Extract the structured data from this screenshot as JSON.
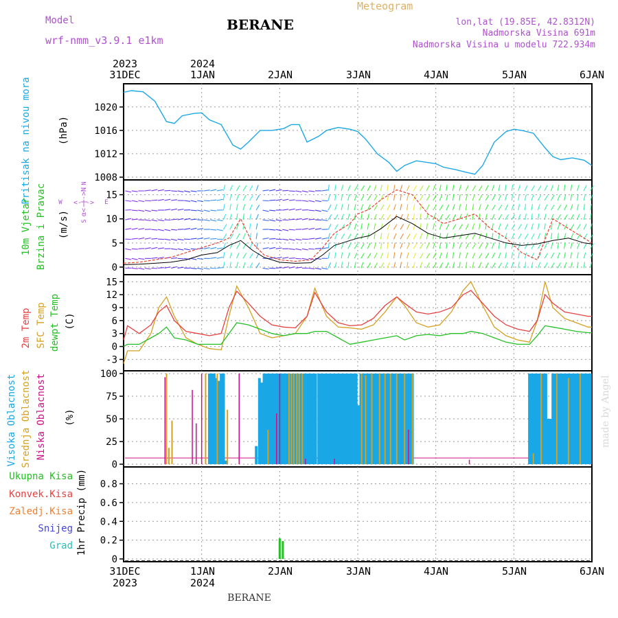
{
  "header": {
    "model_label": "Model",
    "model_name": "wrf-nmm_v3.9.1 e1km",
    "station": "BERANE",
    "product": "Meteogram",
    "coords": "lon,lat (19.85E, 42.8312N)",
    "elevation": "Nadmorska Visina 691m",
    "model_elevation": "Nadmorska Visina u modelu 722.934m"
  },
  "footer": {
    "station": "BERANE",
    "credit": "made by Angel"
  },
  "time_axis": {
    "top_years": [
      "2023",
      "2024"
    ],
    "bottom_years": [
      "2023",
      "2024"
    ],
    "ticks": [
      "31DEC",
      "1JAN",
      "2JAN",
      "3JAN",
      "4JAN",
      "5JAN",
      "6JAN"
    ]
  },
  "colors": {
    "pressure": "#1aa7e6",
    "wind_speed": "#000000",
    "gust": "#e84030",
    "temp2m": "#e84040",
    "sfc_temp": "#d4a020",
    "dewpoint": "#22c022",
    "cloud_high": "#1aa7e6",
    "cloud_mid": "#d4a020",
    "cloud_low": "#cc1188",
    "precip_total": "#22c022",
    "precip_conv": "#e84040",
    "precip_frz": "#f08030",
    "precip_snow": "#4444dd",
    "precip_grad": "#22c0c0",
    "model_text": "#b050d0",
    "product_text": "#e0b060"
  },
  "chart_data": [
    {
      "type": "line",
      "panel": "pressure",
      "ylabel_main": "Pritisak na nivou mora",
      "unit": "(hPa)",
      "yticks": [
        "1008",
        "1012",
        "1016",
        "1020"
      ],
      "ylim": [
        1008,
        1023.5
      ],
      "x_days": [
        0,
        0.1,
        0.25,
        0.4,
        0.55,
        0.65,
        0.75,
        0.9,
        1.0,
        1.1,
        1.25,
        1.4,
        1.5,
        1.6,
        1.75,
        1.9,
        2.05,
        2.15,
        2.25,
        2.35,
        2.5,
        2.6,
        2.75,
        2.9,
        3.0,
        3.1,
        3.25,
        3.4,
        3.5,
        3.6,
        3.75,
        3.9,
        4.0,
        4.1,
        4.25,
        4.4,
        4.5,
        4.6,
        4.75,
        4.9,
        5.0,
        5.1,
        5.25,
        5.4,
        5.5,
        5.6,
        5.75,
        5.9,
        6.0
      ],
      "series": [
        {
          "values": [
            1022.5,
            1022.8,
            1022.6,
            1021.0,
            1017.5,
            1017.2,
            1018.5,
            1018.9,
            1019.0,
            1017.8,
            1017.0,
            1013.5,
            1012.8,
            1014.0,
            1016.0,
            1016.0,
            1016.3,
            1017.0,
            1017.0,
            1014.0,
            1015.0,
            1016.0,
            1016.5,
            1016.2,
            1015.8,
            1014.5,
            1012.0,
            1010.5,
            1009.0,
            1010.0,
            1010.8,
            1010.5,
            1010.3,
            1009.7,
            1009.3,
            1008.8,
            1008.5,
            1010.0,
            1014.0,
            1015.8,
            1016.2,
            1016.0,
            1015.5,
            1013.0,
            1011.5,
            1011.0,
            1011.3,
            1010.9,
            1010.0
          ]
        }
      ]
    },
    {
      "type": "line",
      "panel": "wind",
      "ylabel_main": "10m Vjetar",
      "ylabel_sub": "Brzina i Pravac",
      "unit": "(m/s)",
      "compass": [
        "N",
        "W",
        "E",
        "S"
      ],
      "yticks": [
        "0",
        "5",
        "10",
        "15"
      ],
      "ylim": [
        -1,
        17.5
      ],
      "x_days": [
        0,
        0.2,
        0.4,
        0.6,
        0.8,
        1.0,
        1.2,
        1.35,
        1.5,
        1.65,
        1.8,
        2.0,
        2.2,
        2.4,
        2.55,
        2.7,
        2.9,
        3.0,
        3.15,
        3.3,
        3.5,
        3.7,
        3.9,
        4.1,
        4.3,
        4.5,
        4.7,
        4.9,
        5.1,
        5.3,
        5.5,
        5.7,
        5.9,
        6.0
      ],
      "series": [
        {
          "name": "speed",
          "values": [
            0.5,
            0.6,
            0.8,
            1.0,
            1.5,
            2.5,
            3.0,
            4.5,
            5.5,
            3.5,
            2.0,
            1.0,
            0.8,
            0.9,
            2.5,
            4.5,
            5.5,
            6.0,
            6.5,
            8.0,
            10.5,
            9.0,
            7.0,
            6.0,
            6.5,
            7.0,
            6.0,
            5.0,
            4.5,
            4.8,
            5.5,
            6.0,
            5.0,
            4.8
          ]
        },
        {
          "name": "gust",
          "values": [
            0.8,
            1.0,
            1.5,
            2.0,
            3.0,
            4.0,
            5.0,
            6.0,
            10.0,
            5.0,
            2.5,
            1.5,
            1.2,
            1.5,
            4.0,
            7.0,
            9.0,
            11.0,
            12.0,
            14.0,
            16.0,
            15.0,
            11.0,
            9.0,
            10.0,
            11.0,
            8.0,
            6.0,
            3.0,
            1.5,
            10.0,
            8.0,
            6.0,
            5.0
          ]
        }
      ]
    },
    {
      "type": "line",
      "panel": "temperature",
      "ylabel_lines": [
        "2m Temp",
        "SFC Temp",
        "dewpt Temp"
      ],
      "unit": "(C)",
      "yticks": [
        "-3",
        "0",
        "3",
        "6",
        "9",
        "12",
        "15"
      ],
      "ylim": [
        -5,
        16
      ],
      "x_days": [
        0,
        0.05,
        0.2,
        0.35,
        0.45,
        0.55,
        0.65,
        0.8,
        0.95,
        1.1,
        1.25,
        1.35,
        1.45,
        1.6,
        1.75,
        1.9,
        2.05,
        2.2,
        2.35,
        2.45,
        2.6,
        2.75,
        2.9,
        3.05,
        3.2,
        3.35,
        3.5,
        3.6,
        3.75,
        3.9,
        4.05,
        4.2,
        4.35,
        4.45,
        4.6,
        4.75,
        4.9,
        5.05,
        5.2,
        5.3,
        5.4,
        5.5,
        5.65,
        5.8,
        5.95,
        6.0
      ],
      "series": [
        {
          "name": "2m Temp",
          "values": [
            1.5,
            4.8,
            3.0,
            5.0,
            8.0,
            9.5,
            6.0,
            3.5,
            3.0,
            2.5,
            3.0,
            9.0,
            12.8,
            10.0,
            7.0,
            5.0,
            4.5,
            4.3,
            7.0,
            12.5,
            8.0,
            5.5,
            4.8,
            5.0,
            6.5,
            9.5,
            11.5,
            10.0,
            8.0,
            7.5,
            8.0,
            9.0,
            12.0,
            13.0,
            10.0,
            7.0,
            5.0,
            4.0,
            3.5,
            6.0,
            12.0,
            10.0,
            8.0,
            7.5,
            7.0,
            7.0
          ]
        },
        {
          "name": "SFC Temp",
          "values": [
            -4.0,
            -1.0,
            -1.0,
            3.0,
            9.0,
            11.5,
            7.0,
            2.0,
            0.5,
            -0.5,
            -0.8,
            7.0,
            14.0,
            9.0,
            3.0,
            2.0,
            2.5,
            3.0,
            7.0,
            13.5,
            7.0,
            4.5,
            4.3,
            4.0,
            5.0,
            8.0,
            11.5,
            9.5,
            5.5,
            4.5,
            5.0,
            8.0,
            13.0,
            15.0,
            9.5,
            4.5,
            2.5,
            1.5,
            1.0,
            6.0,
            15.0,
            9.0,
            6.5,
            5.5,
            4.5,
            4.5
          ]
        },
        {
          "name": "dewpt Temp",
          "values": [
            0.0,
            0.5,
            0.5,
            2.0,
            3.0,
            4.5,
            2.0,
            1.5,
            0.5,
            0.5,
            0.5,
            3.0,
            5.5,
            5.0,
            4.0,
            3.0,
            2.5,
            3.0,
            3.0,
            3.5,
            3.5,
            2.0,
            0.5,
            1.0,
            1.5,
            2.0,
            2.5,
            1.5,
            2.5,
            2.8,
            2.5,
            3.0,
            3.0,
            3.5,
            3.0,
            2.0,
            1.0,
            0.5,
            0.5,
            2.5,
            4.8,
            4.5,
            4.0,
            3.5,
            3.2,
            3.2
          ]
        }
      ]
    },
    {
      "type": "bar",
      "panel": "clouds",
      "ylabel_lines": [
        "Visoka Oblacnost",
        "Srednja Oblacnost",
        "Niska Oblacnost"
      ],
      "unit": "(%)",
      "yticks": [
        "0",
        "25",
        "50",
        "75",
        "100"
      ],
      "ylim": [
        0,
        100
      ],
      "series": [
        {
          "name": "Visoka Oblacnost",
          "x_days": [
            1.1,
            1.13,
            1.16,
            1.19,
            1.22,
            1.25,
            1.28,
            1.31,
            1.7,
            1.74,
            1.77,
            1.8,
            1.83,
            1.86,
            1.89,
            1.92,
            1.95,
            1.98,
            2.01,
            2.04,
            2.07,
            2.1,
            2.13,
            2.16,
            2.19,
            2.22,
            2.25,
            2.28,
            2.31,
            2.34,
            2.37,
            2.4,
            2.43,
            2.46,
            2.5,
            2.53,
            2.56,
            2.59,
            2.62,
            2.65,
            2.68,
            2.71,
            2.74,
            2.77,
            2.8,
            2.83,
            2.86,
            2.89,
            2.92,
            2.95,
            2.98,
            3.01,
            3.04,
            3.07,
            3.1,
            3.13,
            3.16,
            3.19,
            3.22,
            3.25,
            3.28,
            3.31,
            3.34,
            3.37,
            3.4,
            3.43,
            3.46,
            3.49,
            3.52,
            3.55,
            3.58,
            3.61,
            3.64,
            3.67,
            3.7,
            5.2,
            5.23,
            5.26,
            5.29,
            5.32,
            5.35,
            5.38,
            5.41,
            5.44,
            5.47,
            5.5,
            5.53,
            5.56,
            5.59,
            5.62,
            5.65,
            5.68,
            5.71,
            5.74,
            5.77,
            5.8,
            5.83,
            5.86,
            5.89,
            5.92,
            5.95,
            5.98
          ],
          "values": [
            100,
            100,
            100,
            95,
            92,
            100,
            100,
            4,
            20,
            95,
            90,
            100,
            100,
            100,
            100,
            100,
            100,
            100,
            100,
            100,
            100,
            100,
            100,
            100,
            100,
            100,
            100,
            100,
            100,
            100,
            100,
            100,
            100,
            100,
            100,
            100,
            100,
            100,
            100,
            100,
            100,
            100,
            100,
            100,
            100,
            100,
            100,
            100,
            100,
            100,
            100,
            65,
            100,
            100,
            100,
            100,
            100,
            100,
            100,
            100,
            100,
            100,
            100,
            100,
            100,
            100,
            100,
            100,
            100,
            100,
            100,
            100,
            100,
            100,
            100,
            100,
            100,
            100,
            100,
            100,
            100,
            100,
            100,
            50,
            50,
            100,
            100,
            100,
            100,
            100,
            100,
            100,
            100,
            100,
            100,
            100,
            100,
            100,
            100,
            100,
            100,
            100
          ]
        },
        {
          "name": "Srednja Oblacnost",
          "x_days": [
            0.55,
            0.58,
            0.62,
            1.05,
            1.2,
            1.33,
            1.85,
            2.12,
            2.15,
            2.18,
            2.22,
            2.25,
            2.29,
            3.05,
            3.1,
            3.18,
            3.28,
            3.35,
            3.42,
            3.5,
            3.6,
            3.7,
            5.25,
            5.35,
            5.55,
            5.7,
            5.85
          ],
          "values": [
            100,
            18,
            48,
            100,
            100,
            60,
            38,
            100,
            100,
            100,
            100,
            100,
            100,
            100,
            98,
            100,
            100,
            100,
            100,
            100,
            100,
            100,
            12,
            100,
            100,
            95,
            100
          ]
        },
        {
          "name": "Niska Oblacnost",
          "x_days": [
            0.53,
            0.88,
            0.93,
            1.0,
            1.48,
            1.96,
            2.0,
            2.33,
            2.7,
            3.65,
            4.43
          ],
          "values": [
            96,
            82,
            45,
            100,
            100,
            56,
            100,
            6,
            6,
            38,
            5
          ]
        }
      ]
    },
    {
      "type": "bar",
      "panel": "precip",
      "ylabel": "1hr Precip (mm)",
      "legend": [
        "Ukupna Kisa",
        "Konvek.Kisa",
        "Zaledj.Kisa",
        "Snijeg",
        "Grad"
      ],
      "yticks": [
        "0",
        "0.2",
        "0.4",
        "0.6",
        "0.8"
      ],
      "ylim": [
        0,
        0.95
      ],
      "series": [
        {
          "name": "Ukupna Kisa",
          "x_days": [
            2.0,
            2.04
          ],
          "values": [
            0.22,
            0.19
          ]
        }
      ]
    }
  ]
}
